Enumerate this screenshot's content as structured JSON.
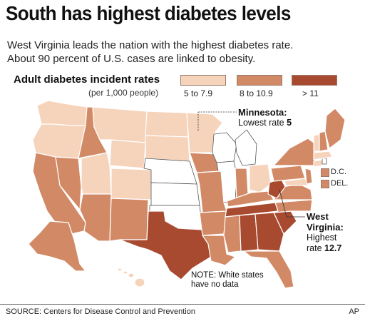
{
  "title": "South has highest diabetes levels",
  "subtitle": [
    "West Virginia leads the nation with the highest diabetes rate.",
    "About 90 percent of U.S. cases are linked to obesity."
  ],
  "legend": {
    "title": "Adult diabetes incident rates",
    "subtitle": "(per 1,000 people)",
    "bins": [
      {
        "label": "5 to 7.9",
        "color": "#f6d3bb"
      },
      {
        "label": "8 to 10.9",
        "color": "#d28a66"
      },
      {
        "label": "> 11",
        "color": "#a84a30"
      }
    ]
  },
  "small_states": [
    {
      "label": "D.C.",
      "color": "#d28a66"
    },
    {
      "label": "DEL.",
      "color": "#d28a66"
    }
  ],
  "callouts": {
    "minnesota": {
      "title": "Minnesota:",
      "text": "Lowest rate",
      "value": "5"
    },
    "west_virginia": {
      "title_1": "West",
      "title_2": "Virginia:",
      "line_1": "Highest",
      "line_2": "rate",
      "value": "12.7"
    }
  },
  "note": [
    "NOTE: White states",
    "have no data"
  ],
  "source": "SOURCE: Centers for Disease Control and Prevention",
  "credit": "AP",
  "colors": {
    "low": "#f6d3bb",
    "mid": "#d28a66",
    "high": "#a84a30",
    "no_data": "#ffffff",
    "border": "#ffffff"
  }
}
